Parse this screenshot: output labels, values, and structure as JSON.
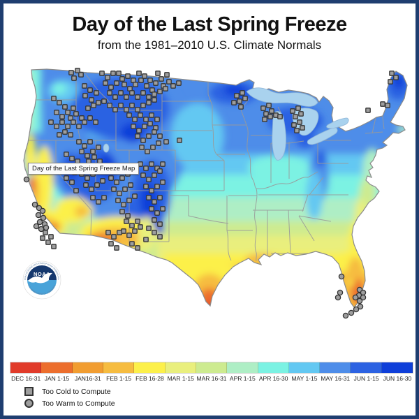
{
  "title": "Day of the Last Spring Freeze",
  "subtitle": "from the 1981–2010 U.S. Climate Normals",
  "tooltip": "Day of the Last Spring Freeze Map",
  "frame": {
    "border_color": "#1f3e70",
    "background": "#ffffff"
  },
  "noaa_logo": {
    "acronym": "NOAA",
    "ring_top_text": "NATIONAL OCEANIC AND ATMOSPHERIC ADMINISTRATION",
    "ring_bottom_text": "U.S. DEPARTMENT OF COMMERCE",
    "top_color": "#15386e",
    "bottom_color": "#49a3d9"
  },
  "legend": {
    "bins": [
      {
        "label": "DEC 16-31",
        "color": "#e13b2a"
      },
      {
        "label": "JAN 1-15",
        "color": "#ec6e2d"
      },
      {
        "label": "JAN16-31",
        "color": "#f19d31"
      },
      {
        "label": "FEB 1-15",
        "color": "#f6bc40"
      },
      {
        "label": "FEB 16-28",
        "color": "#fcf04a"
      },
      {
        "label": "MAR 1-15",
        "color": "#e9ef7d"
      },
      {
        "label": "MAR 16-31",
        "color": "#cdeb90"
      },
      {
        "label": "APR 1-15",
        "color": "#aeeec5"
      },
      {
        "label": "APR 16-30",
        "color": "#7bf2e3"
      },
      {
        "label": "MAY 1-15",
        "color": "#63c8f2"
      },
      {
        "label": "MAY 16-31",
        "color": "#4e8de9"
      },
      {
        "label": "JUN 1-15",
        "color": "#2c62e2"
      },
      {
        "label": "JUN 16-30",
        "color": "#0f3fd9"
      }
    ],
    "too_cold": {
      "label": "Too Cold to Compute",
      "shape": "square",
      "fill": "#9e9e9e",
      "stroke": "#333333"
    },
    "too_warm": {
      "label": "Too Warm to Compute",
      "shape": "circle",
      "fill": "#9e9e9e",
      "stroke": "#333333"
    }
  },
  "map": {
    "state_border_color": "#999999",
    "lake_color": "#a9d2ee",
    "markers": {
      "too_cold_squares": [
        [
          97,
          99
        ],
        [
          106,
          96
        ],
        [
          101,
          107
        ],
        [
          111,
          102
        ],
        [
          116,
          118
        ],
        [
          124,
          124
        ],
        [
          117,
          132
        ],
        [
          126,
          138
        ],
        [
          133,
          128
        ],
        [
          129,
          146
        ],
        [
          121,
          150
        ],
        [
          136,
          142
        ],
        [
          141,
          100
        ],
        [
          149,
          106
        ],
        [
          157,
          100
        ],
        [
          146,
          114
        ],
        [
          154,
          120
        ],
        [
          162,
          114
        ],
        [
          170,
          108
        ],
        [
          165,
          100
        ],
        [
          178,
          104
        ],
        [
          186,
          110
        ],
        [
          173,
          116
        ],
        [
          181,
          122
        ],
        [
          189,
          116
        ],
        [
          197,
          110
        ],
        [
          194,
          100
        ],
        [
          202,
          104
        ],
        [
          210,
          110
        ],
        [
          205,
          118
        ],
        [
          213,
          124
        ],
        [
          218,
          114
        ],
        [
          226,
          108
        ],
        [
          221,
          100
        ],
        [
          229,
          118
        ],
        [
          237,
          112
        ],
        [
          234,
          102
        ],
        [
          152,
          128
        ],
        [
          160,
          134
        ],
        [
          168,
          128
        ],
        [
          176,
          134
        ],
        [
          184,
          128
        ],
        [
          192,
          134
        ],
        [
          200,
          128
        ],
        [
          208,
          134
        ],
        [
          216,
          130
        ],
        [
          224,
          126
        ],
        [
          232,
          122
        ],
        [
          144,
          140
        ],
        [
          152,
          146
        ],
        [
          160,
          152
        ],
        [
          168,
          146
        ],
        [
          176,
          152
        ],
        [
          184,
          146
        ],
        [
          192,
          152
        ],
        [
          200,
          146
        ],
        [
          208,
          142
        ],
        [
          216,
          138
        ],
        [
          243,
          118
        ],
        [
          251,
          114
        ],
        [
          72,
          136
        ],
        [
          80,
          142
        ],
        [
          88,
          148
        ],
        [
          76,
          156
        ],
        [
          84,
          162
        ],
        [
          92,
          156
        ],
        [
          100,
          150
        ],
        [
          96,
          164
        ],
        [
          104,
          158
        ],
        [
          112,
          164
        ],
        [
          68,
          170
        ],
        [
          76,
          176
        ],
        [
          84,
          170
        ],
        [
          92,
          176
        ],
        [
          100,
          170
        ],
        [
          108,
          176
        ],
        [
          116,
          170
        ],
        [
          124,
          164
        ],
        [
          132,
          170
        ],
        [
          88,
          184
        ],
        [
          96,
          188
        ],
        [
          80,
          188
        ],
        [
          180,
          160
        ],
        [
          188,
          166
        ],
        [
          196,
          160
        ],
        [
          204,
          166
        ],
        [
          212,
          160
        ],
        [
          220,
          166
        ],
        [
          186,
          176
        ],
        [
          194,
          182
        ],
        [
          202,
          176
        ],
        [
          210,
          172
        ],
        [
          218,
          178
        ],
        [
          192,
          190
        ],
        [
          200,
          196
        ],
        [
          208,
          190
        ],
        [
          216,
          184
        ],
        [
          224,
          190
        ],
        [
          198,
          206
        ],
        [
          206,
          212
        ],
        [
          214,
          206
        ],
        [
          222,
          200
        ],
        [
          108,
          198
        ],
        [
          116,
          204
        ],
        [
          124,
          198
        ],
        [
          112,
          212
        ],
        [
          120,
          218
        ],
        [
          128,
          212
        ],
        [
          136,
          206
        ],
        [
          106,
          226
        ],
        [
          114,
          232
        ],
        [
          122,
          226
        ],
        [
          130,
          220
        ],
        [
          138,
          226
        ],
        [
          112,
          244
        ],
        [
          120,
          250
        ],
        [
          128,
          244
        ],
        [
          136,
          238
        ],
        [
          118,
          260
        ],
        [
          126,
          266
        ],
        [
          134,
          260
        ],
        [
          142,
          254
        ],
        [
          128,
          278
        ],
        [
          136,
          284
        ],
        [
          144,
          278
        ],
        [
          150,
          234
        ],
        [
          158,
          240
        ],
        [
          166,
          234
        ],
        [
          174,
          240
        ],
        [
          154,
          250
        ],
        [
          162,
          256
        ],
        [
          170,
          250
        ],
        [
          178,
          244
        ],
        [
          158,
          266
        ],
        [
          166,
          272
        ],
        [
          174,
          266
        ],
        [
          182,
          260
        ],
        [
          164,
          282
        ],
        [
          172,
          288
        ],
        [
          180,
          282
        ],
        [
          188,
          276
        ],
        [
          170,
          298
        ],
        [
          178,
          304
        ],
        [
          196,
          230
        ],
        [
          204,
          236
        ],
        [
          212,
          230
        ],
        [
          220,
          236
        ],
        [
          228,
          230
        ],
        [
          200,
          246
        ],
        [
          208,
          252
        ],
        [
          216,
          246
        ],
        [
          224,
          240
        ],
        [
          204,
          262
        ],
        [
          212,
          268
        ],
        [
          220,
          262
        ],
        [
          228,
          256
        ],
        [
          208,
          278
        ],
        [
          216,
          284
        ],
        [
          224,
          278
        ],
        [
          212,
          294
        ],
        [
          220,
          300
        ],
        [
          228,
          294
        ],
        [
          216,
          310
        ],
        [
          224,
          316
        ],
        [
          208,
          322
        ],
        [
          216,
          328
        ],
        [
          224,
          334
        ],
        [
          176,
          312
        ],
        [
          184,
          318
        ],
        [
          192,
          312
        ],
        [
          172,
          326
        ],
        [
          180,
          332
        ],
        [
          188,
          326
        ],
        [
          196,
          320
        ],
        [
          184,
          344
        ],
        [
          192,
          350
        ],
        [
          204,
          338
        ],
        [
          90,
          216
        ],
        [
          98,
          222
        ],
        [
          94,
          236
        ],
        [
          102,
          242
        ],
        [
          98,
          256
        ],
        [
          90,
          250
        ],
        [
          104,
          268
        ],
        [
          60,
          328
        ],
        [
          68,
          334
        ],
        [
          64,
          342
        ],
        [
          72,
          348
        ],
        [
          56,
          336
        ],
        [
          150,
          328
        ],
        [
          158,
          334
        ],
        [
          166,
          328
        ],
        [
          154,
          344
        ],
        [
          162,
          350
        ],
        [
          233,
          198
        ],
        [
          252,
          196
        ],
        [
          334,
          132
        ],
        [
          342,
          128
        ],
        [
          338,
          140
        ],
        [
          330,
          142
        ],
        [
          346,
          136
        ],
        [
          340,
          148
        ],
        [
          372,
          150
        ],
        [
          380,
          146
        ],
        [
          376,
          158
        ],
        [
          384,
          154
        ],
        [
          390,
          160
        ],
        [
          374,
          166
        ],
        [
          382,
          162
        ],
        [
          396,
          162
        ],
        [
          414,
          154
        ],
        [
          422,
          150
        ],
        [
          418,
          162
        ],
        [
          426,
          158
        ],
        [
          416,
          174
        ],
        [
          424,
          170
        ],
        [
          420,
          182
        ],
        [
          428,
          178
        ],
        [
          556,
          100
        ],
        [
          562,
          106
        ],
        [
          554,
          112
        ],
        [
          543,
          144
        ],
        [
          550,
          146
        ],
        [
          522,
          153
        ]
      ],
      "too_warm_circles": [
        [
          33,
          252
        ],
        [
          45,
          288
        ],
        [
          51,
          293
        ],
        [
          56,
          297
        ],
        [
          50,
          303
        ],
        [
          57,
          307
        ],
        [
          52,
          313
        ],
        [
          59,
          316
        ],
        [
          47,
          319
        ],
        [
          54,
          323
        ],
        [
          61,
          321
        ],
        [
          484,
          391
        ],
        [
          482,
          414
        ],
        [
          479,
          421
        ],
        [
          510,
          410
        ],
        [
          515,
          414
        ],
        [
          509,
          418
        ],
        [
          515,
          421
        ],
        [
          510,
          426
        ],
        [
          504,
          421
        ],
        [
          511,
          434
        ],
        [
          505,
          438
        ],
        [
          498,
          443
        ],
        [
          490,
          447
        ]
      ]
    }
  }
}
